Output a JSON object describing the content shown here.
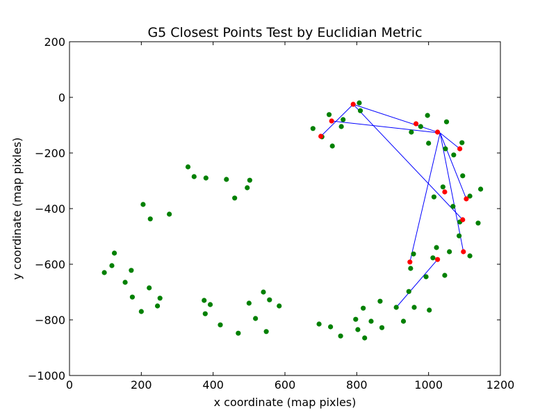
{
  "chart_data": {
    "type": "scatter",
    "title": "G5 Closest Points Test by Euclidian Metric",
    "xlabel": "x coordinate (map pixles)",
    "ylabel": "y coordinate (map pixles)",
    "xlim": [
      0,
      1200
    ],
    "ylim": [
      -1000,
      200
    ],
    "xticks": [
      0,
      200,
      400,
      600,
      800,
      1000,
      1200
    ],
    "yticks": [
      -1000,
      -800,
      -600,
      -400,
      -200,
      0,
      200
    ],
    "grid": false,
    "legend": "none",
    "colors": {
      "points": "#008000",
      "closest": "#ff0000",
      "lines": "#0000ff",
      "axes": "#000000"
    },
    "series": [
      {
        "role": "points",
        "points": [
          [
            97,
            -630
          ],
          [
            118,
            -605
          ],
          [
            125,
            -560
          ],
          [
            155,
            -665
          ],
          [
            172,
            -622
          ],
          [
            175,
            -718
          ],
          [
            200,
            -770
          ],
          [
            205,
            -385
          ],
          [
            225,
            -437
          ],
          [
            222,
            -685
          ],
          [
            245,
            -750
          ],
          [
            252,
            -722
          ],
          [
            278,
            -420
          ],
          [
            330,
            -250
          ],
          [
            347,
            -285
          ],
          [
            375,
            -730
          ],
          [
            378,
            -778
          ],
          [
            380,
            -290
          ],
          [
            392,
            -745
          ],
          [
            420,
            -818
          ],
          [
            437,
            -295
          ],
          [
            460,
            -362
          ],
          [
            470,
            -848
          ],
          [
            495,
            -325
          ],
          [
            500,
            -740
          ],
          [
            502,
            -298
          ],
          [
            518,
            -795
          ],
          [
            540,
            -700
          ],
          [
            548,
            -842
          ],
          [
            557,
            -728
          ],
          [
            584,
            -750
          ],
          [
            678,
            -112
          ],
          [
            703,
            -142
          ],
          [
            695,
            -815
          ],
          [
            723,
            -62
          ],
          [
            732,
            -175
          ],
          [
            727,
            -825
          ],
          [
            755,
            -858
          ],
          [
            757,
            -105
          ],
          [
            762,
            -80
          ],
          [
            797,
            -798
          ],
          [
            803,
            -835
          ],
          [
            807,
            -20
          ],
          [
            810,
            -48
          ],
          [
            818,
            -758
          ],
          [
            822,
            -865
          ],
          [
            840,
            -805
          ],
          [
            865,
            -733
          ],
          [
            870,
            -828
          ],
          [
            910,
            -755
          ],
          [
            930,
            -805
          ],
          [
            945,
            -698
          ],
          [
            950,
            -615
          ],
          [
            952,
            -125
          ],
          [
            958,
            -563
          ],
          [
            960,
            -755
          ],
          [
            978,
            -105
          ],
          [
            993,
            -645
          ],
          [
            997,
            -65
          ],
          [
            1000,
            -165
          ],
          [
            1002,
            -765
          ],
          [
            1012,
            -577
          ],
          [
            1015,
            -358
          ],
          [
            1022,
            -540
          ],
          [
            1040,
            -322
          ],
          [
            1045,
            -640
          ],
          [
            1047,
            -185
          ],
          [
            1050,
            -88
          ],
          [
            1058,
            -555
          ],
          [
            1068,
            -392
          ],
          [
            1070,
            -207
          ],
          [
            1085,
            -498
          ],
          [
            1087,
            -448
          ],
          [
            1093,
            -163
          ],
          [
            1095,
            -282
          ],
          [
            1115,
            -570
          ],
          [
            1115,
            -355
          ],
          [
            1138,
            -452
          ],
          [
            1145,
            -330
          ]
        ]
      },
      {
        "role": "closest",
        "points": [
          [
            700,
            -140
          ],
          [
            730,
            -85
          ],
          [
            790,
            -25
          ],
          [
            948,
            -592
          ],
          [
            965,
            -95
          ],
          [
            1025,
            -125
          ],
          [
            1025,
            -583
          ],
          [
            1045,
            -340
          ],
          [
            1087,
            -185
          ],
          [
            1095,
            -440
          ],
          [
            1097,
            -555
          ],
          [
            1105,
            -365
          ]
        ]
      },
      {
        "role": "lines",
        "segments": [
          [
            [
              700,
              -140
            ],
            [
              790,
              -25
            ]
          ],
          [
            [
              790,
              -25
            ],
            [
              1032,
              -128
            ]
          ],
          [
            [
              730,
              -85
            ],
            [
              1032,
              -128
            ]
          ],
          [
            [
              1032,
              -128
            ],
            [
              1087,
              -185
            ]
          ],
          [
            [
              790,
              -25
            ],
            [
              1095,
              -440
            ]
          ],
          [
            [
              1032,
              -128
            ],
            [
              1105,
              -365
            ]
          ],
          [
            [
              1032,
              -128
            ],
            [
              948,
              -592
            ]
          ],
          [
            [
              1032,
              -128
            ],
            [
              1097,
              -555
            ]
          ],
          [
            [
              910,
              -755
            ],
            [
              1025,
              -583
            ]
          ]
        ]
      }
    ]
  }
}
